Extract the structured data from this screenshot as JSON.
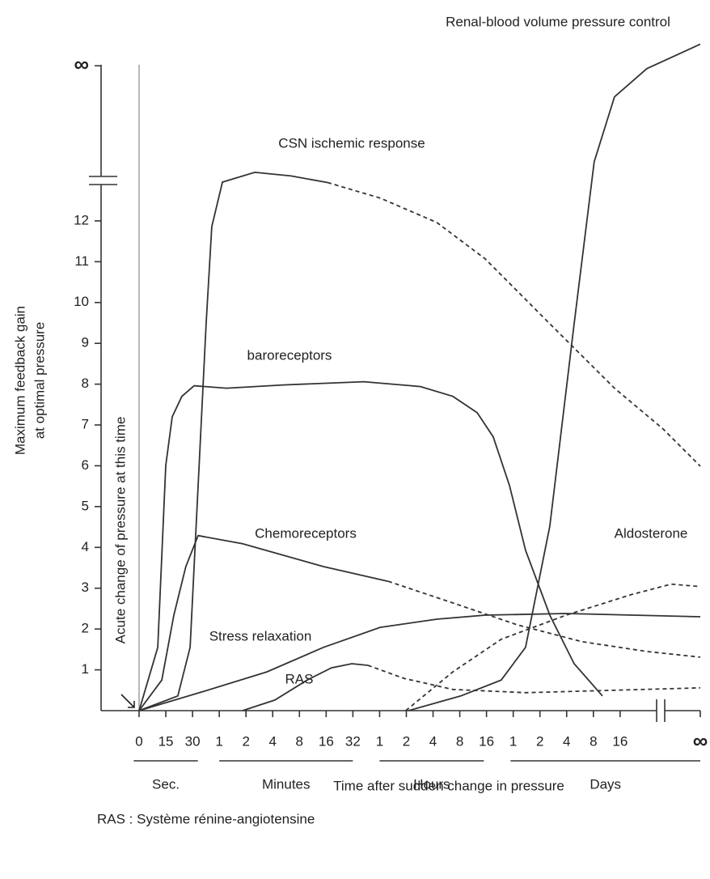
{
  "chart_data": {
    "type": "line",
    "xlabel": "Time after sudden change in pressure",
    "ylabel": [
      "Maximum feedback gain",
      "at optimal pressure"
    ],
    "annotation": "Acute change of pressure at this time",
    "footnote": "RAS : Système rénine-angiotensine",
    "xlim": [
      0,
      21
    ],
    "ylim": [
      0,
      16.5
    ],
    "xticks": [
      {
        "value": 0,
        "label": "0"
      },
      {
        "value": 1,
        "label": "15"
      },
      {
        "value": 2,
        "label": "30"
      },
      {
        "value": 3,
        "label": "1"
      },
      {
        "value": 4,
        "label": "2"
      },
      {
        "value": 5,
        "label": "4"
      },
      {
        "value": 6,
        "label": "8"
      },
      {
        "value": 7,
        "label": "16"
      },
      {
        "value": 8,
        "label": "32"
      },
      {
        "value": 9,
        "label": "1"
      },
      {
        "value": 10,
        "label": "2"
      },
      {
        "value": 11,
        "label": "4"
      },
      {
        "value": 12,
        "label": "8"
      },
      {
        "value": 13,
        "label": "16"
      },
      {
        "value": 14,
        "label": "1"
      },
      {
        "value": 15,
        "label": "2"
      },
      {
        "value": 16,
        "label": "4"
      },
      {
        "value": 17,
        "label": "8"
      },
      {
        "value": 18,
        "label": "16"
      },
      {
        "value": 21,
        "label": "∞"
      }
    ],
    "x_groups": [
      {
        "label": "Sec.",
        "from": -0.2,
        "to": 2.2
      },
      {
        "label": "Minutes",
        "from": 3,
        "to": 8
      },
      {
        "label": "Hours",
        "from": 9,
        "to": 12.9
      },
      {
        "label": "Days",
        "from": 13.9,
        "to": 21
      }
    ],
    "yticks": [
      1,
      2,
      3,
      4,
      5,
      6,
      7,
      8,
      9,
      10,
      11,
      12,
      {
        "value": 15.8,
        "label": "∞"
      }
    ],
    "series": [
      {
        "name": "Renal-blood volume pressure control",
        "color": "#333333",
        "x": [
          10.08,
          12.04,
          13.55,
          14.46,
          15.37,
          16.28,
          17.03,
          17.79,
          19.0,
          21.0
        ],
        "values": [
          0,
          0.36,
          0.75,
          1.55,
          4.52,
          9.48,
          13.45,
          15.04,
          15.73,
          16.33
        ]
      },
      {
        "name": "CSN ischemic response",
        "color": "#333333",
        "dash_from": 9,
        "x": [
          0,
          1.45,
          1.91,
          2.21,
          2.51,
          2.72,
          3.12,
          4.33,
          5.69,
          7.05,
          9.02,
          11.14,
          12.95,
          15.37,
          17.79,
          19.61,
          21.0
        ],
        "values": [
          0,
          0.36,
          1.55,
          5.51,
          9.48,
          11.86,
          12.95,
          13.19,
          13.1,
          12.94,
          12.56,
          11.96,
          11.07,
          9.48,
          7.9,
          6.9,
          5.99
        ]
      },
      {
        "name": "baroreceptors",
        "color": "#333333",
        "x": [
          0,
          0.7,
          1.0,
          1.24,
          1.6,
          2.06,
          3.27,
          5.39,
          8.41,
          10.53,
          11.74,
          12.65,
          13.25,
          13.86,
          14.46,
          15.37,
          16.28,
          17.34
        ],
        "values": [
          0,
          1.55,
          6.01,
          7.2,
          7.7,
          7.96,
          7.9,
          7.98,
          8.06,
          7.94,
          7.7,
          7.3,
          6.71,
          5.52,
          3.93,
          2.34,
          1.15,
          0.36
        ]
      },
      {
        "name": "Chemoreceptors",
        "color": "#333333",
        "dash_from": 7,
        "x": [
          0,
          0.85,
          1.3,
          1.75,
          2.21,
          3.87,
          6.9,
          9.32,
          11.74,
          14.16,
          16.58,
          19.0,
          21.0
        ],
        "values": [
          0,
          0.75,
          2.34,
          3.53,
          4.29,
          4.09,
          3.53,
          3.17,
          2.64,
          2.1,
          1.69,
          1.45,
          1.31
        ]
      },
      {
        "name": "Aldosterone",
        "color": "#333333",
        "dash_from": 0,
        "x": [
          9.98,
          11.74,
          13.55,
          15.98,
          18.4,
          19.91,
          21.0
        ],
        "values": [
          0,
          0.95,
          1.75,
          2.34,
          2.84,
          3.1,
          3.04
        ]
      },
      {
        "name": "Stress relaxation",
        "color": "#333333",
        "x": [
          0,
          2.36,
          4.78,
          6.9,
          9.02,
          11.14,
          12.95,
          15.98,
          21.0
        ],
        "values": [
          0,
          0.46,
          0.95,
          1.55,
          2.04,
          2.24,
          2.34,
          2.38,
          2.3
        ]
      },
      {
        "name": "RAS",
        "color": "#333333",
        "dash_from": 5,
        "x": [
          3.87,
          5.08,
          6.29,
          7.2,
          7.96,
          8.56,
          9.92,
          11.74,
          14.46,
          17.79,
          21.0
        ],
        "values": [
          0,
          0.26,
          0.75,
          1.05,
          1.15,
          1.11,
          0.79,
          0.52,
          0.44,
          0.5,
          0.56
        ]
      }
    ]
  }
}
